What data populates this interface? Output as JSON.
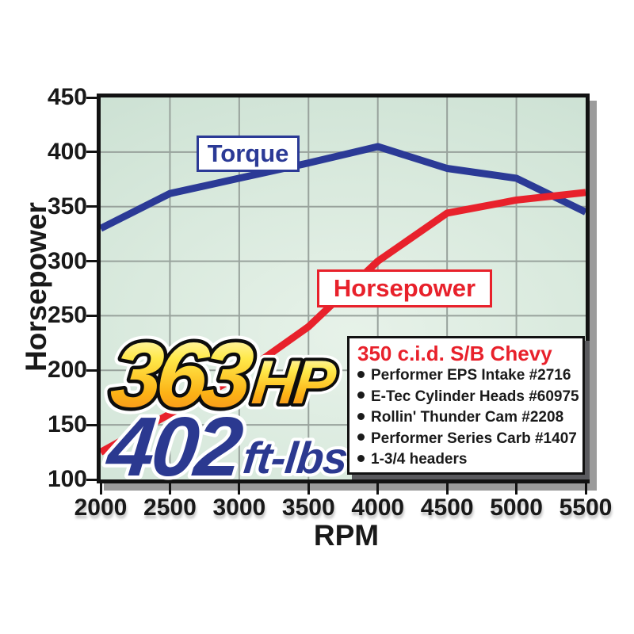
{
  "chart_data": {
    "type": "line",
    "title": "",
    "xlabel": "RPM",
    "ylabel": "Horsepower",
    "xlim": [
      2000,
      5500
    ],
    "ylim": [
      100,
      450
    ],
    "xticks": [
      2000,
      2500,
      3000,
      3500,
      4000,
      4500,
      5000,
      5500
    ],
    "yticks": [
      100,
      150,
      200,
      250,
      300,
      350,
      400,
      450
    ],
    "grid": true,
    "legend_position": "on-curve boxes",
    "series": [
      {
        "name": "Torque",
        "units": "ft-lbs",
        "color": "#2b3a96",
        "x": [
          2000,
          2500,
          3000,
          3500,
          4000,
          4500,
          5000,
          5500
        ],
        "values": [
          330,
          362,
          376,
          390,
          405,
          385,
          376,
          345
        ]
      },
      {
        "name": "Horsepower",
        "units": "HP",
        "color": "#e8212b",
        "x": [
          2000,
          2500,
          3000,
          3500,
          4000,
          4500,
          5000,
          5500
        ],
        "values": [
          125,
          160,
          195,
          240,
          300,
          344,
          356,
          363
        ]
      }
    ]
  },
  "labels": {
    "torque_box": "Torque",
    "horsepower_box": "Horsepower"
  },
  "callouts": {
    "hp_number": "363",
    "hp_unit": "HP",
    "torque_number": "402",
    "torque_unit": "ft-lbs"
  },
  "spec_box": {
    "title": "350 c.i.d. S/B Chevy",
    "items": [
      "Performer EPS Intake #2716",
      "E-Tec Cylinder Heads #60975",
      "Rollin' Thunder Cam #2208",
      "Performer Series Carb #1407",
      "1-3/4 headers"
    ]
  },
  "colors": {
    "torque_blue": "#2b3a96",
    "horsepower_red": "#e8212b",
    "grid_gray": "#98a29c",
    "plot_border": "#121212",
    "plot_shadow": "#9b9b9b",
    "spec_shadow": "#5a5a5e",
    "plot_bg_center": "#e7f2e9",
    "plot_bg_edge": "#c4dbcd",
    "gold_top": "#fffdea",
    "gold_mid1": "#ffe94a",
    "gold_mid2": "#fcb216",
    "gold_bottom": "#f5821f",
    "ftlbs_blue": "#2b3990"
  }
}
